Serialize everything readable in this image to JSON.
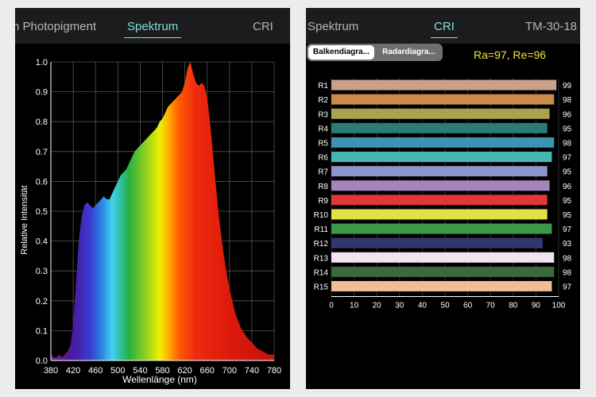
{
  "left_panel": {
    "tabs": [
      {
        "label": "n Photopigment",
        "active": false
      },
      {
        "label": "Spektrum",
        "active": true
      },
      {
        "label": "CRI",
        "active": false
      }
    ]
  },
  "right_panel": {
    "tabs": [
      {
        "label": "Spektrum",
        "active": false
      },
      {
        "label": "CRI",
        "active": true
      },
      {
        "label": "TM-30-18",
        "active": false
      }
    ],
    "segmented": {
      "selected": "Balkendiagra...",
      "other": "Radardiagra..."
    },
    "summary": "Ra=97, Re=96"
  },
  "chart_data": [
    {
      "type": "area",
      "title": "",
      "xlabel": "Wellenlänge (nm)",
      "ylabel": "Relative Intensität",
      "xlim": [
        380,
        780
      ],
      "ylim": [
        0,
        1.0
      ],
      "grid": true,
      "x_ticks": [
        "380",
        "420",
        "460",
        "500",
        "540",
        "580",
        "620",
        "660",
        "700",
        "740",
        "780"
      ],
      "y_ticks": [
        "0.0",
        "0.1",
        "0.2",
        "0.3",
        "0.4",
        "0.5",
        "0.6",
        "0.7",
        "0.8",
        "0.9",
        "1.0"
      ],
      "fill": "visible-spectrum colors by wavelength",
      "x": [
        380,
        385,
        390,
        395,
        400,
        405,
        410,
        415,
        420,
        425,
        430,
        435,
        440,
        445,
        450,
        455,
        460,
        465,
        470,
        475,
        480,
        485,
        490,
        495,
        500,
        505,
        510,
        515,
        520,
        525,
        530,
        535,
        540,
        545,
        550,
        555,
        560,
        565,
        570,
        575,
        580,
        585,
        590,
        595,
        600,
        605,
        610,
        615,
        620,
        625,
        630,
        635,
        640,
        645,
        650,
        655,
        660,
        665,
        670,
        675,
        680,
        685,
        690,
        695,
        700,
        710,
        720,
        730,
        740,
        750,
        760,
        770,
        780
      ],
      "y": [
        0.02,
        0.01,
        0.01,
        0.02,
        0.01,
        0.02,
        0.03,
        0.05,
        0.12,
        0.26,
        0.4,
        0.48,
        0.52,
        0.53,
        0.52,
        0.51,
        0.52,
        0.53,
        0.54,
        0.55,
        0.54,
        0.54,
        0.56,
        0.58,
        0.6,
        0.62,
        0.63,
        0.64,
        0.66,
        0.68,
        0.7,
        0.71,
        0.72,
        0.73,
        0.74,
        0.75,
        0.76,
        0.77,
        0.78,
        0.8,
        0.81,
        0.83,
        0.85,
        0.86,
        0.87,
        0.88,
        0.89,
        0.9,
        0.93,
        0.98,
        1.0,
        0.96,
        0.93,
        0.92,
        0.93,
        0.92,
        0.88,
        0.8,
        0.7,
        0.6,
        0.5,
        0.42,
        0.35,
        0.29,
        0.24,
        0.16,
        0.11,
        0.08,
        0.06,
        0.04,
        0.03,
        0.02,
        0.02
      ]
    },
    {
      "type": "bar",
      "orientation": "horizontal",
      "title": "",
      "xlim": [
        0,
        100
      ],
      "grid": true,
      "x_ticks": [
        "0",
        "10",
        "20",
        "30",
        "40",
        "50",
        "60",
        "70",
        "80",
        "90",
        "100"
      ],
      "categories": [
        "R1",
        "R2",
        "R3",
        "R4",
        "R5",
        "R6",
        "R7",
        "R8",
        "R9",
        "R10",
        "R11",
        "R12",
        "R13",
        "R14",
        "R15"
      ],
      "values": [
        99,
        98,
        96,
        95,
        98,
        97,
        95,
        96,
        95,
        95,
        97,
        93,
        98,
        98,
        97
      ],
      "colors": [
        "#c9a08c",
        "#c98a4a",
        "#a8a44a",
        "#2e7a76",
        "#3c94b2",
        "#44b8b4",
        "#8c94cc",
        "#a486bc",
        "#e03838",
        "#e2e044",
        "#3a9a48",
        "#303870",
        "#f2e4ee",
        "#3a6a3a",
        "#f2bc96"
      ]
    }
  ]
}
